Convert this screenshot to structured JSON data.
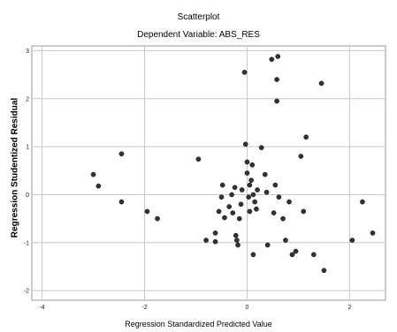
{
  "chart_data": {
    "type": "scatter",
    "title": "Scatterplot",
    "subtitle": "Dependent Variable: ABS_RES",
    "xlabel": "Regression Standardized Predicted Value",
    "ylabel": "Regression Studentized Residual",
    "xlim": [
      -4.2,
      2.7
    ],
    "ylim": [
      -2.2,
      3.1
    ],
    "xticks": [
      -4,
      -2,
      0,
      2
    ],
    "xtick_labels": [
      "-4",
      "-2",
      "0",
      "2"
    ],
    "yticks": [
      -2,
      -1,
      0,
      1,
      2,
      3
    ],
    "ytick_labels": [
      "-2",
      "-1",
      "0",
      "1",
      "2",
      "3"
    ],
    "grid": true,
    "marker_color": "#333333",
    "points": [
      [
        -3.0,
        0.42
      ],
      [
        -2.9,
        0.18
      ],
      [
        -2.45,
        0.85
      ],
      [
        -2.45,
        -0.15
      ],
      [
        -1.95,
        -0.35
      ],
      [
        -1.75,
        -0.5
      ],
      [
        -0.95,
        0.74
      ],
      [
        -0.8,
        -0.95
      ],
      [
        -0.62,
        -0.8
      ],
      [
        -0.62,
        -0.98
      ],
      [
        -0.55,
        -0.35
      ],
      [
        -0.5,
        -0.05
      ],
      [
        -0.48,
        0.2
      ],
      [
        -0.44,
        -0.48
      ],
      [
        -0.35,
        -0.25
      ],
      [
        -0.3,
        0.0
      ],
      [
        -0.28,
        -0.38
      ],
      [
        -0.24,
        0.15
      ],
      [
        -0.22,
        -0.85
      ],
      [
        -0.2,
        -0.95
      ],
      [
        -0.18,
        -1.05
      ],
      [
        -0.15,
        -0.5
      ],
      [
        -0.12,
        -0.2
      ],
      [
        -0.1,
        0.1
      ],
      [
        -0.05,
        2.55
      ],
      [
        -0.03,
        1.05
      ],
      [
        0.0,
        0.45
      ],
      [
        0.0,
        0.68
      ],
      [
        0.03,
        -0.05
      ],
      [
        0.05,
        0.2
      ],
      [
        0.05,
        -0.35
      ],
      [
        0.08,
        0.3
      ],
      [
        0.1,
        0.62
      ],
      [
        0.12,
        0.0
      ],
      [
        0.12,
        -1.25
      ],
      [
        0.15,
        -0.15
      ],
      [
        0.18,
        -0.3
      ],
      [
        0.2,
        0.1
      ],
      [
        0.28,
        0.98
      ],
      [
        0.35,
        0.42
      ],
      [
        0.38,
        0.05
      ],
      [
        0.4,
        -1.05
      ],
      [
        0.48,
        2.82
      ],
      [
        0.52,
        -0.38
      ],
      [
        0.55,
        0.2
      ],
      [
        0.58,
        2.4
      ],
      [
        0.58,
        1.95
      ],
      [
        0.6,
        2.88
      ],
      [
        0.62,
        -0.05
      ],
      [
        0.7,
        -0.5
      ],
      [
        0.75,
        -0.95
      ],
      [
        0.82,
        -0.15
      ],
      [
        0.88,
        -1.25
      ],
      [
        0.95,
        -1.18
      ],
      [
        1.05,
        0.8
      ],
      [
        1.1,
        -0.35
      ],
      [
        1.15,
        1.2
      ],
      [
        1.3,
        -1.25
      ],
      [
        1.45,
        2.32
      ],
      [
        1.5,
        -1.58
      ],
      [
        2.05,
        -0.95
      ],
      [
        2.25,
        -0.15
      ],
      [
        2.45,
        -0.8
      ]
    ]
  }
}
